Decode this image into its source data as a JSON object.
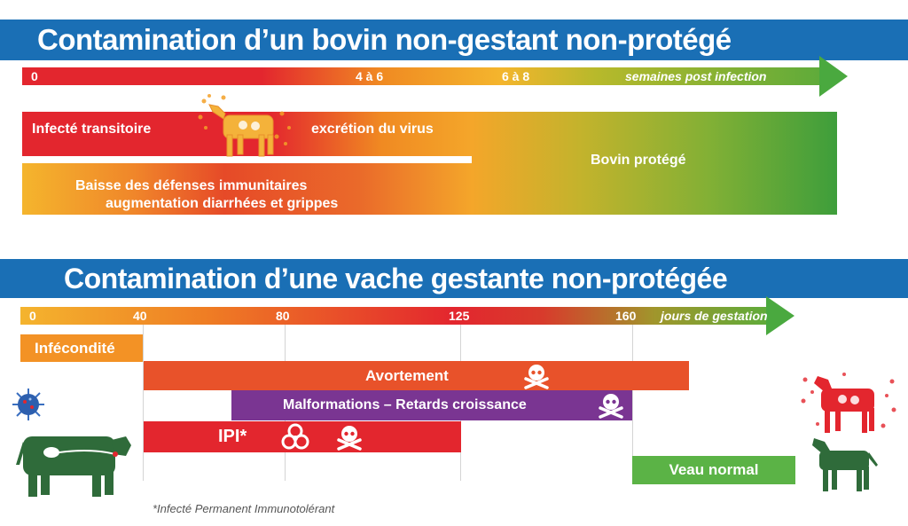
{
  "section1": {
    "title": "Contamination d’un bovin non-gestant non-protégé",
    "timeline": {
      "ticks": [
        "0",
        "4 à 6",
        "6 à 8"
      ],
      "unit": "semaines post infection"
    },
    "blocks": {
      "infecte_transitoire": "Infecté transitoire",
      "excretion": "excrétion du virus",
      "baisse_line1": "Baisse des défenses immunitaires",
      "baisse_line2": "augmentation diarrhées et grippes",
      "bovin_protege": "Bovin protégé"
    }
  },
  "section2": {
    "title": "Contamination d’une vache gestante non-protégée",
    "timeline": {
      "ticks": [
        "0",
        "40",
        "80",
        "125",
        "160"
      ],
      "unit": "jours de gestation"
    },
    "blocks": {
      "infecondite": "Infécondité",
      "avortement": "Avortement",
      "malformations": "Malformations – Retards croissance",
      "ipi": "IPI*",
      "veau_normal": "Veau normal"
    },
    "footnote": "*Infecté Permanent Immunotolérant"
  },
  "colors": {
    "banner": "#1a6fb5",
    "red": "#e3262e",
    "orange": "#f39225",
    "purple": "#7a3592",
    "green": "#5bb346",
    "cow": "#2f6b3a"
  },
  "icons": [
    "skull-crossbones-icon",
    "biohazard-icon",
    "virus-icon",
    "cow-icon",
    "calf-icon"
  ]
}
